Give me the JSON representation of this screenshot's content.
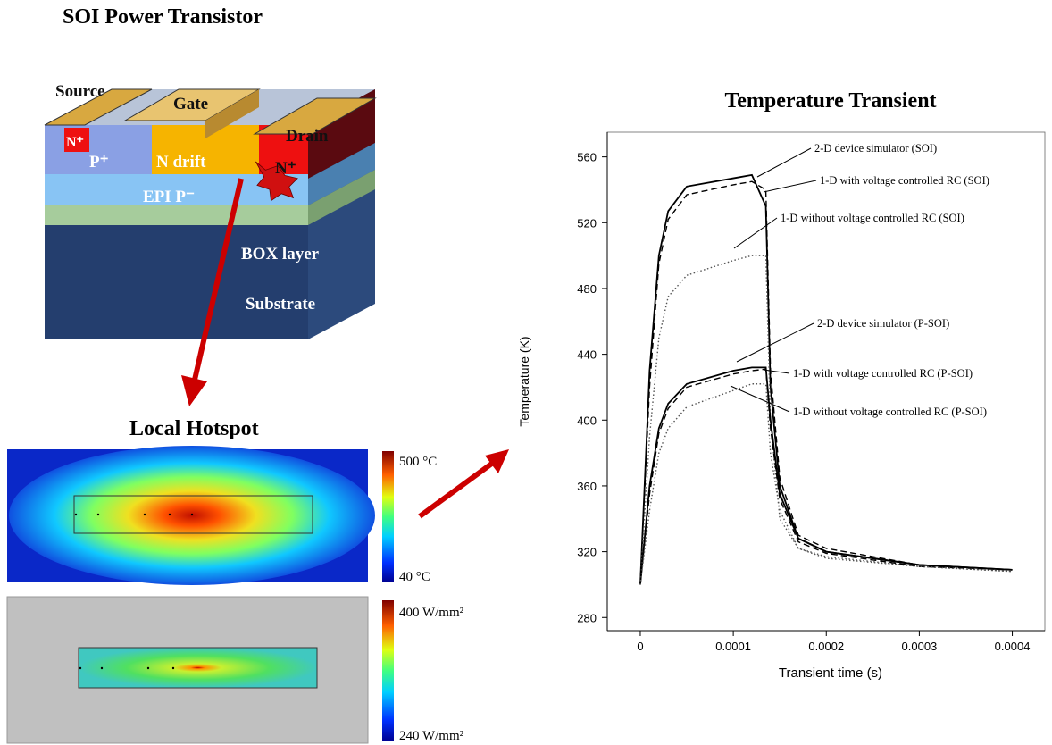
{
  "device": {
    "title": "SOI Power Transistor",
    "labels": {
      "source": "Source",
      "gate": "Gate",
      "drain": "Drain",
      "source_n": "N⁺",
      "p_plus": "P⁺",
      "n_drift": "N drift",
      "drain_n": "N⁺",
      "epi": "EPI P⁻",
      "box": "BOX layer",
      "substrate": "Substrate"
    }
  },
  "hotspot": {
    "title": "Local Hotspot",
    "temperature_scale": {
      "max": "500 °C",
      "min": "40 °C"
    },
    "power_scale": {
      "max": "400 W/mm²",
      "min": "240 W/mm²"
    }
  },
  "chart_data": {
    "type": "line",
    "title": "Temperature Transient",
    "x_label": "Transient time (s)",
    "y_label": "Temperature (K)",
    "x": [
      0,
      1e-05,
      2e-05,
      3e-05,
      5e-05,
      0.0001,
      0.00012,
      0.000135,
      0.00014,
      0.00015,
      0.00017,
      0.0002,
      0.0003,
      0.0004
    ],
    "xlim": [
      -3.55e-05,
      0.000435
    ],
    "xticks": [
      0,
      0.0001,
      0.0002,
      0.0003,
      0.0004
    ],
    "ylim": [
      272,
      575
    ],
    "yticks": [
      280,
      320,
      360,
      400,
      440,
      480,
      520,
      560
    ],
    "series": [
      {
        "name": "2-D device simulator (SOI)",
        "color": "#000000",
        "dash": "solid",
        "values": [
          300,
          430,
          500,
          527,
          542,
          547,
          549,
          530,
          420,
          360,
          328,
          320,
          312,
          309
        ]
      },
      {
        "name": "1-D with voltage controlled RC (SOI)",
        "color": "#000000",
        "dash": "dashed",
        "values": [
          300,
          420,
          495,
          522,
          537,
          543,
          545,
          540,
          430,
          365,
          330,
          322,
          312,
          309
        ]
      },
      {
        "name": "1-D without voltage controlled RC (SOI)",
        "color": "#555555",
        "dash": "dotted",
        "values": [
          300,
          390,
          450,
          475,
          488,
          497,
          500,
          500,
          400,
          340,
          322,
          317,
          311,
          308
        ]
      },
      {
        "name": "2-D device simulator (P-SOI)",
        "color": "#000000",
        "dash": "solid",
        "values": [
          300,
          360,
          395,
          410,
          422,
          430,
          432,
          432,
          400,
          355,
          328,
          320,
          312,
          309
        ]
      },
      {
        "name": "1-D with voltage controlled RC (P-SOI)",
        "color": "#000000",
        "dash": "dashed",
        "values": [
          300,
          355,
          392,
          407,
          420,
          428,
          430,
          431,
          395,
          352,
          326,
          319,
          311,
          309
        ]
      },
      {
        "name": "1-D without voltage controlled RC (P-SOI)",
        "color": "#555555",
        "dash": "dotted",
        "values": [
          300,
          345,
          380,
          395,
          408,
          418,
          422,
          422,
          380,
          345,
          322,
          316,
          311,
          308
        ]
      }
    ]
  }
}
